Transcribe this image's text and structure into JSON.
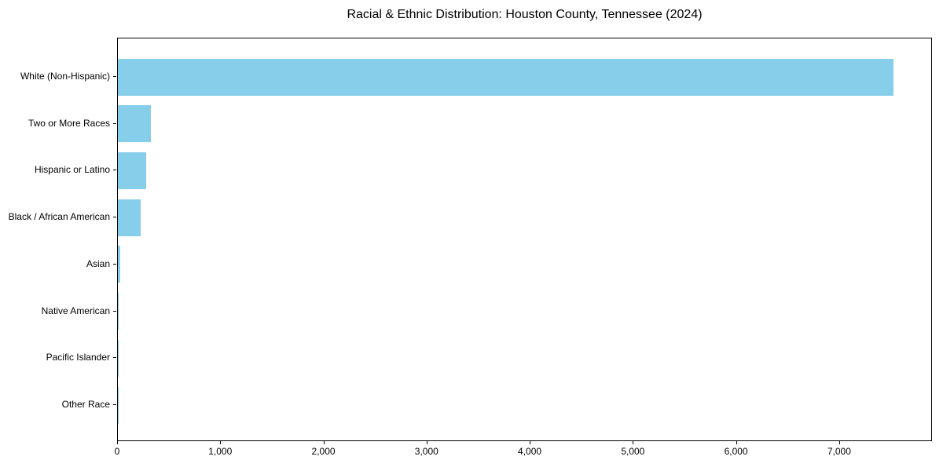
{
  "chart_data": {
    "type": "bar",
    "orientation": "horizontal",
    "title": "Racial & Ethnic Distribution: Houston County, Tennessee (2024)",
    "categories": [
      "White (Non-Hispanic)",
      "Two or More Races",
      "Hispanic or Latino",
      "Black / African American",
      "Asian",
      "Native American",
      "Pacific Islander",
      "Other Race"
    ],
    "values": [
      7518,
      318,
      272,
      219,
      22,
      8,
      3,
      2
    ],
    "xlabel": "",
    "ylabel": "",
    "xlim": [
      0,
      7900
    ],
    "x_ticks": [
      0,
      1000,
      2000,
      3000,
      4000,
      5000,
      6000,
      7000
    ],
    "x_tick_labels": [
      "0",
      "1,000",
      "2,000",
      "3,000",
      "4,000",
      "5,000",
      "6,000",
      "7,000"
    ],
    "bar_color": "#87CEEB",
    "background_color": "#FFFFFF",
    "frame_color": "#000000",
    "text_color": "#000000",
    "grid": false,
    "legend": null,
    "category_order": "largest_at_top"
  }
}
